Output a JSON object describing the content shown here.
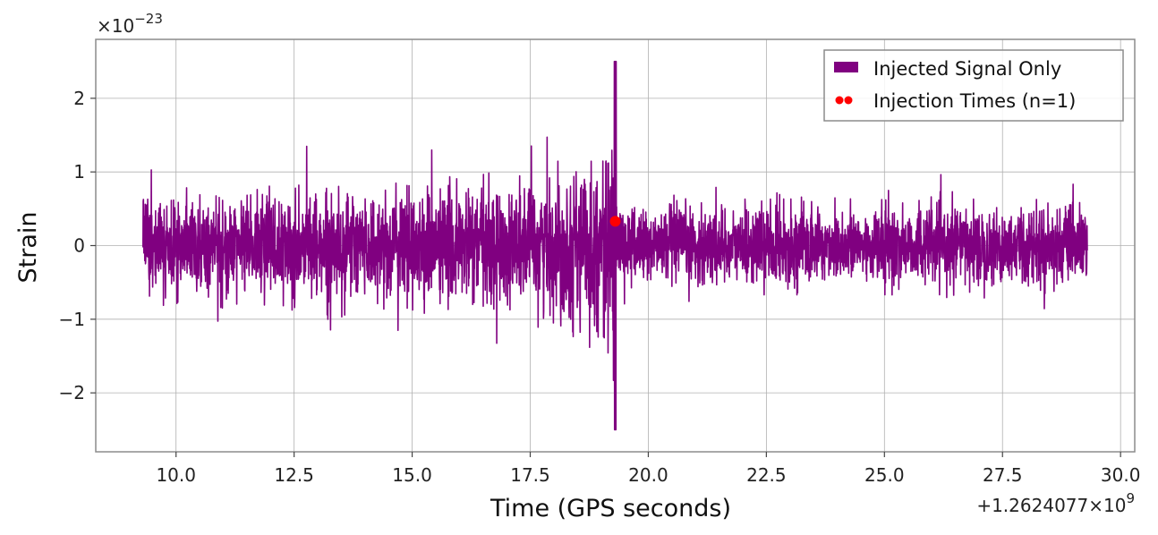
{
  "chart_data": {
    "type": "line",
    "xlabel": "Time (GPS seconds)",
    "ylabel": "Strain",
    "x_offset_label": "+1.2624077×10",
    "x_offset_exponent": "9",
    "y_scale_label": "×10",
    "y_scale_exponent": "−23",
    "xlim": [
      8.3,
      30.3
    ],
    "ylim": [
      -2.8,
      2.8
    ],
    "grid": true,
    "legend_placement": "top-right",
    "x_ticks": [
      10.0,
      12.5,
      15.0,
      17.5,
      20.0,
      22.5,
      25.0,
      27.5,
      30.0
    ],
    "x_tick_labels": [
      "10.0",
      "12.5",
      "15.0",
      "17.5",
      "20.0",
      "22.5",
      "25.0",
      "27.5",
      "30.0"
    ],
    "y_ticks": [
      -2,
      -1,
      0,
      1,
      2
    ],
    "y_tick_labels": [
      "−2",
      "−1",
      "0",
      "1",
      "2"
    ],
    "series": [
      {
        "name": "Injected Signal Only",
        "color": "#800080",
        "kind": "line",
        "x_start": 9.3,
        "x_end": 29.3,
        "amplitude_envelope": [
          {
            "t": 9.3,
            "amp": 0.85
          },
          {
            "t": 12.0,
            "amp": 0.9
          },
          {
            "t": 15.0,
            "amp": 1.0
          },
          {
            "t": 17.5,
            "amp": 1.15
          },
          {
            "t": 18.7,
            "amp": 1.4
          },
          {
            "t": 19.2,
            "amp": 1.7
          },
          {
            "t": 19.3,
            "amp": 2.5
          },
          {
            "t": 19.35,
            "amp": 0.7
          },
          {
            "t": 29.3,
            "amp": 0.7
          }
        ]
      },
      {
        "name": "Injection Times (n=1)",
        "color": "#ff0000",
        "kind": "scatter",
        "points": [
          {
            "x": 19.3,
            "y": 0.33
          }
        ]
      }
    ]
  }
}
